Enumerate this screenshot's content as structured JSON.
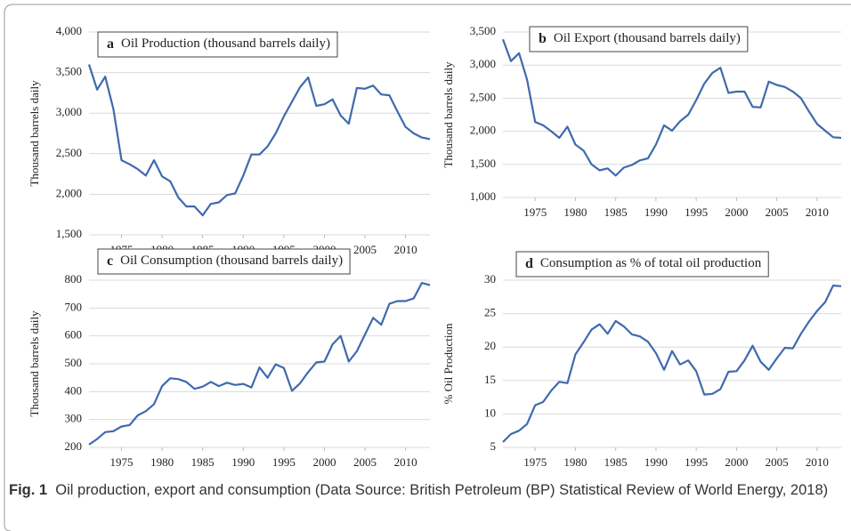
{
  "caption": {
    "label": "Fig. 1",
    "text": "Oil production, export and consumption (Data Source: British Petroleum (BP) Statistical Review of World Energy, 2018)"
  },
  "chart_data": [
    {
      "type": "line",
      "panel": "a",
      "title": "Oil Production (thousand barrels daily)",
      "y_label": "Thousand barrels daily",
      "color": "#3f6aad",
      "grid": true,
      "x": [
        1971,
        1972,
        1973,
        1974,
        1975,
        1976,
        1977,
        1978,
        1979,
        1980,
        1981,
        1982,
        1983,
        1984,
        1985,
        1986,
        1987,
        1988,
        1989,
        1990,
        1991,
        1992,
        1993,
        1994,
        1995,
        1996,
        1997,
        1998,
        1999,
        2000,
        2001,
        2002,
        2003,
        2004,
        2005,
        2006,
        2007,
        2008,
        2009,
        2010,
        2011,
        2012,
        2013
      ],
      "values": [
        3600,
        3290,
        3450,
        3050,
        2420,
        2370,
        2310,
        2230,
        2420,
        2220,
        2160,
        1960,
        1850,
        1850,
        1740,
        1880,
        1900,
        1990,
        2010,
        2230,
        2490,
        2490,
        2590,
        2750,
        2960,
        3140,
        3320,
        3440,
        3090,
        3110,
        3170,
        2970,
        2870,
        3310,
        3300,
        3340,
        3230,
        3220,
        3020,
        2830,
        2750,
        2700,
        2680
      ],
      "xlim": [
        1971,
        2013
      ],
      "xticks": [
        1975,
        1980,
        1985,
        1990,
        1995,
        2000,
        2005,
        2010
      ],
      "ylim": [
        1500,
        4000
      ],
      "yticks": [
        {
          "value": 1500,
          "label": "1,500"
        },
        {
          "value": 2000,
          "label": "2,000"
        },
        {
          "value": 2500,
          "label": "2,500"
        },
        {
          "value": 3000,
          "label": "3,000"
        },
        {
          "value": 3500,
          "label": "3,500"
        },
        {
          "value": 4000,
          "label": "4,000"
        }
      ]
    },
    {
      "type": "line",
      "panel": "b",
      "title": "Oil Export (thousand barrels daily)",
      "y_label": "Thousand barrels daily",
      "color": "#3f6aad",
      "grid": true,
      "x": [
        1971,
        1972,
        1973,
        1974,
        1975,
        1976,
        1977,
        1978,
        1979,
        1980,
        1981,
        1982,
        1983,
        1984,
        1985,
        1986,
        1987,
        1988,
        1989,
        1990,
        1991,
        1992,
        1993,
        1994,
        1995,
        1996,
        1997,
        1998,
        1999,
        2000,
        2001,
        2002,
        2003,
        2004,
        2005,
        2006,
        2007,
        2008,
        2009,
        2010,
        2011,
        2012,
        2013
      ],
      "values": [
        3390,
        3060,
        3180,
        2780,
        2140,
        2090,
        2000,
        1900,
        2070,
        1800,
        1710,
        1500,
        1410,
        1440,
        1330,
        1450,
        1490,
        1560,
        1590,
        1800,
        2090,
        2010,
        2150,
        2250,
        2470,
        2720,
        2880,
        2960,
        2580,
        2600,
        2600,
        2370,
        2360,
        2750,
        2700,
        2670,
        2600,
        2500,
        2300,
        2110,
        2010,
        1910,
        1900
      ],
      "xlim": [
        1971,
        2013
      ],
      "xticks": [
        1975,
        1980,
        1985,
        1990,
        1995,
        2000,
        2005,
        2010
      ],
      "ylim": [
        1000,
        3500
      ],
      "yticks": [
        {
          "value": 1000,
          "label": "1,000"
        },
        {
          "value": 1500,
          "label": "1,500"
        },
        {
          "value": 2000,
          "label": "2,000"
        },
        {
          "value": 2500,
          "label": "2,500"
        },
        {
          "value": 3000,
          "label": "3,000"
        },
        {
          "value": 3500,
          "label": "3,500"
        }
      ]
    },
    {
      "type": "line",
      "panel": "c",
      "title": "Oil Consumption (thousand barrels daily)",
      "y_label": "Thousand barrels daily",
      "color": "#3f6aad",
      "grid": true,
      "x": [
        1971,
        1972,
        1973,
        1974,
        1975,
        1976,
        1977,
        1978,
        1979,
        1980,
        1981,
        1982,
        1983,
        1984,
        1985,
        1986,
        1987,
        1988,
        1989,
        1990,
        1991,
        1992,
        1993,
        1994,
        1995,
        1996,
        1997,
        1998,
        1999,
        2000,
        2001,
        2002,
        2003,
        2004,
        2005,
        2006,
        2007,
        2008,
        2009,
        2010,
        2011,
        2012,
        2013
      ],
      "values": [
        210,
        230,
        255,
        258,
        275,
        280,
        315,
        330,
        355,
        420,
        448,
        445,
        435,
        410,
        418,
        435,
        420,
        432,
        424,
        428,
        415,
        487,
        450,
        498,
        485,
        403,
        430,
        470,
        505,
        508,
        570,
        600,
        508,
        545,
        605,
        665,
        640,
        715,
        725,
        725,
        735,
        790,
        782
      ],
      "xlim": [
        1971,
        2013
      ],
      "xticks": [
        1975,
        1980,
        1985,
        1990,
        1995,
        2000,
        2005,
        2010
      ],
      "ylim": [
        200,
        800
      ],
      "yticks": [
        200,
        300,
        400,
        500,
        600,
        700,
        800
      ]
    },
    {
      "type": "line",
      "panel": "d",
      "title": "Consumption as % of total oil production",
      "y_label": "% Oil Production",
      "color": "#3f6aad",
      "grid": true,
      "x": [
        1971,
        1972,
        1973,
        1974,
        1975,
        1976,
        1977,
        1978,
        1979,
        1980,
        1981,
        1982,
        1983,
        1984,
        1985,
        1986,
        1987,
        1988,
        1989,
        1990,
        1991,
        1992,
        1993,
        1994,
        1995,
        1996,
        1997,
        1998,
        1999,
        2000,
        2001,
        2002,
        2003,
        2004,
        2005,
        2006,
        2007,
        2008,
        2009,
        2010,
        2011,
        2012,
        2013
      ],
      "values": [
        5.8,
        7.0,
        7.5,
        8.5,
        11.3,
        11.8,
        13.5,
        14.8,
        14.6,
        18.9,
        20.7,
        22.6,
        23.4,
        22.0,
        23.9,
        23.1,
        21.9,
        21.6,
        20.8,
        19.1,
        16.6,
        19.4,
        17.4,
        18.0,
        16.4,
        12.9,
        13.0,
        13.7,
        16.3,
        16.4,
        18.0,
        20.2,
        17.8,
        16.6,
        18.3,
        19.9,
        19.8,
        22.0,
        23.8,
        25.4,
        26.7,
        29.2,
        29.1
      ],
      "xlim": [
        1971,
        2013
      ],
      "xticks": [
        1975,
        1980,
        1985,
        1990,
        1995,
        2000,
        2005,
        2010
      ],
      "ylim": [
        5,
        30
      ],
      "yticks": [
        5,
        10,
        15,
        20,
        25,
        30
      ]
    }
  ]
}
